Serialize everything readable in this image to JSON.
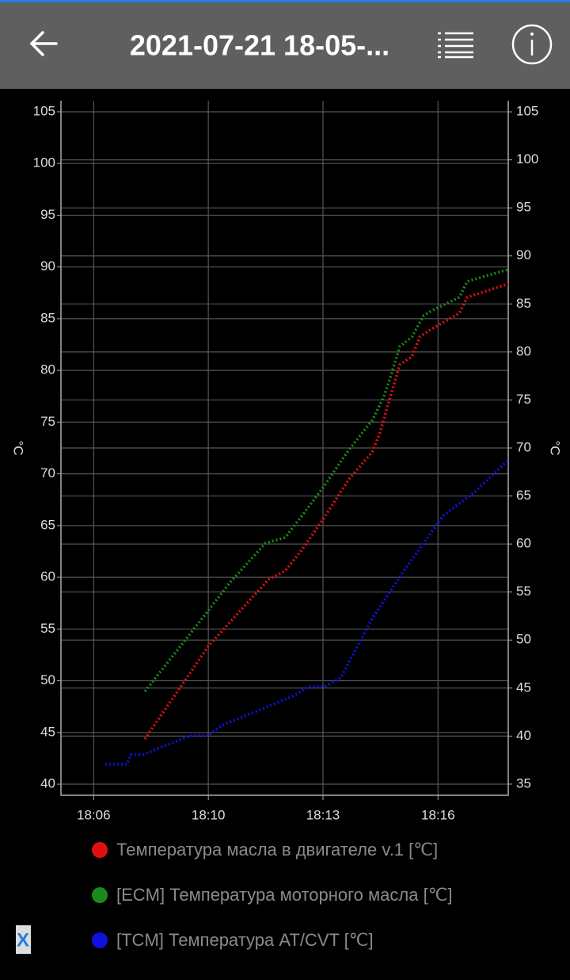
{
  "header": {
    "title": "2021-07-21 18-05-..."
  },
  "close_label": "X",
  "chart_data": {
    "type": "line",
    "ylabel": "°C",
    "y2label": "°C",
    "xlim": [
      5.72,
      18.71
    ],
    "xticks": [
      {
        "value": 6.67,
        "label": "18:06"
      },
      {
        "value": 10,
        "label": "18:10"
      },
      {
        "value": 13.33,
        "label": "18:13"
      },
      {
        "value": 16.67,
        "label": "18:16"
      }
    ],
    "ylim": [
      38.93,
      106.07
    ],
    "yticks": [
      40,
      45,
      50,
      55,
      60,
      65,
      70,
      75,
      80,
      85,
      90,
      95,
      100,
      105
    ],
    "y2lim": [
      33.84,
      106.16
    ],
    "y2ticks": [
      35,
      40,
      45,
      50,
      55,
      60,
      65,
      70,
      75,
      80,
      85,
      90,
      95,
      100,
      105
    ],
    "grid": true,
    "series": [
      {
        "name": "Температура масла в двигателе v.1 [℃]",
        "color": "#e01010",
        "x": [
          8.16,
          10,
          10.62,
          11.77,
          12.23,
          12.69,
          13.33,
          14.07,
          14.76,
          14.99,
          15.22,
          15.56,
          15.91,
          16.14,
          16.48,
          17.29,
          17.52,
          18.71
        ],
        "values": [
          44.37,
          53.34,
          55.64,
          59.85,
          60.62,
          62.54,
          65.6,
          69.43,
          72.12,
          74.03,
          76.72,
          80.55,
          81.32,
          83.23,
          84.0,
          85.53,
          87.06,
          88.37
        ]
      },
      {
        "name": "[ECM] Температура моторного масла [℃]",
        "color": "#1a8a1a",
        "x": [
          8.16,
          10,
          10.62,
          11.66,
          12.23,
          12.69,
          13.33,
          14.07,
          14.76,
          15.1,
          15.33,
          15.56,
          15.91,
          16.25,
          16.48,
          17.29,
          17.52,
          18.71
        ],
        "values": [
          48.97,
          56.79,
          59.47,
          63.3,
          63.84,
          65.83,
          68.67,
          72.27,
          75.18,
          77.48,
          79.78,
          82.31,
          83.23,
          85.3,
          85.76,
          87.06,
          88.6,
          89.75
        ]
      },
      {
        "name": "[TCM] Температура AT/CVT [℃]",
        "color": "#1010e0",
        "axis": "y2",
        "x": [
          7.01,
          7.63,
          7.75,
          8.09,
          9.47,
          10,
          10.39,
          12.46,
          12.92,
          13.38,
          13.84,
          14.76,
          15.68,
          16.83,
          17.75,
          18.71
        ],
        "values": [
          37.06,
          37.06,
          38.05,
          38.05,
          40.04,
          40.04,
          41.11,
          44.16,
          45.15,
          45.15,
          46.06,
          52.25,
          57.21,
          62.98,
          65.46,
          68.76
        ]
      }
    ]
  }
}
